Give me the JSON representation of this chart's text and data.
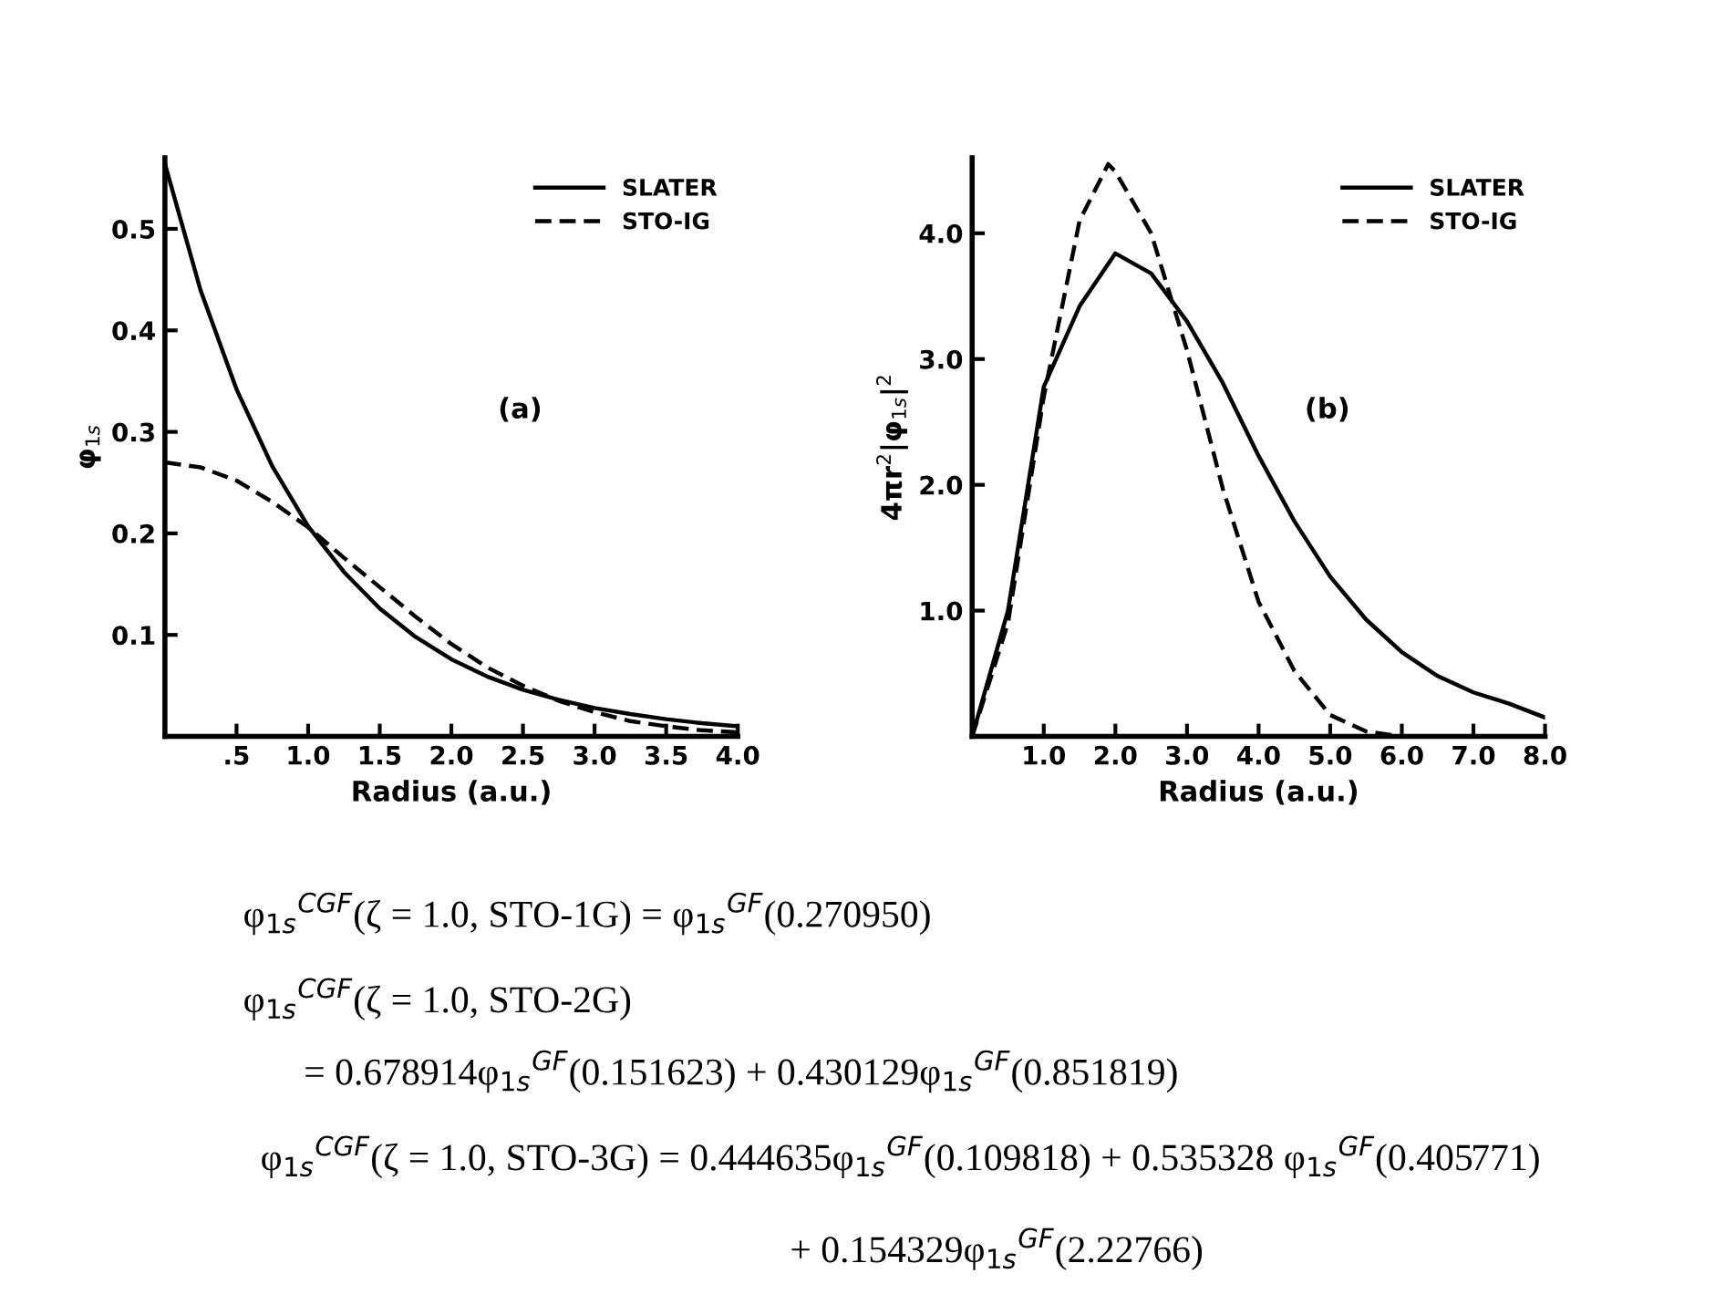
{
  "chart_data": [
    {
      "type": "line",
      "xlabel": "Radius (a.u.)",
      "ylabel": "φ$_{1s}$",
      "xlim": [
        0,
        4
      ],
      "ylim": [
        0,
        0.57
      ],
      "xticks": [
        {
          "value": 0.5,
          "label": ".5"
        },
        {
          "value": 1.0,
          "label": "1.0"
        },
        {
          "value": 1.5,
          "label": "1.5"
        },
        {
          "value": 2.0,
          "label": "2.0"
        },
        {
          "value": 2.5,
          "label": "2.5"
        },
        {
          "value": 3.0,
          "label": "3.0"
        },
        {
          "value": 3.5,
          "label": "3.5"
        },
        {
          "value": 4.0,
          "label": "4.0"
        }
      ],
      "yticks": [
        0.1,
        0.2,
        0.3,
        0.4,
        0.5
      ],
      "x": [
        0,
        0.25,
        0.5,
        0.75,
        1.0,
        1.25,
        1.5,
        1.75,
        2.0,
        2.25,
        2.5,
        2.75,
        3.0,
        3.25,
        3.5,
        3.75,
        4.0
      ],
      "series": [
        {
          "name": "SLATER",
          "color": "#000000",
          "line_style": "solid",
          "values": [
            0.564,
            0.439,
            0.342,
            0.266,
            0.207,
            0.162,
            0.126,
            0.098,
            0.076,
            0.059,
            0.046,
            0.036,
            0.028,
            0.022,
            0.017,
            0.013,
            0.01
          ]
        },
        {
          "name": "STO-IG",
          "color": "#000000",
          "line_style": "dashed",
          "values": [
            0.27,
            0.265,
            0.252,
            0.231,
            0.206,
            0.176,
            0.147,
            0.118,
            0.091,
            0.068,
            0.05,
            0.035,
            0.024,
            0.015,
            0.01,
            0.006,
            0.004
          ]
        }
      ],
      "legend": "top right",
      "grid": false,
      "marker": "none",
      "annotations": [
        "(a)",
        "φ$_{1s}$$^{CGF}$(ζ = 1.0, STO-1G) = φ$_{1s}$$^{GF}$(0.270950)",
        "φ$_{1s}$$^{CGF}$(ζ = 1.0, STO-2G)",
        "= 0.678914φ$_{1s}$$^{GF}$(0.151623) + 0.430129φ$_{1s}$$^{GF}$(0.851819)",
        "φ$_{1s}$$^{CGF}$(ζ = 1.0, STO-3G) = 0.444635φ$_{1s}$$^{GF}$(0.109818) + 0.535328 φ$_{1s}$$^{GF}$(0.405771)",
        "+ 0.154329φ$_{1s}$$^{GF}$(2.22766)"
      ]
    },
    {
      "type": "line",
      "xlabel": "Radius (a.u.)",
      "ylabel": "4πr$^{2}$|φ$_{1s}$|$^{2}$",
      "xlim": [
        0,
        8
      ],
      "ylim": [
        0,
        4.6
      ],
      "xticks": [
        {
          "value": 1,
          "label": "1.0"
        },
        {
          "value": 2,
          "label": "2.0"
        },
        {
          "value": 3,
          "label": "3.0"
        },
        {
          "value": 4,
          "label": "4.0"
        },
        {
          "value": 5,
          "label": "5.0"
        },
        {
          "value": 6,
          "label": "6.0"
        },
        {
          "value": 7,
          "label": "7.0"
        },
        {
          "value": 8,
          "label": "8.0"
        }
      ],
      "yticks": [
        {
          "value": 1,
          "label": "1.0"
        },
        {
          "value": 2,
          "label": "2.0"
        },
        {
          "value": 3,
          "label": "3.0"
        },
        {
          "value": 4,
          "label": "4.0"
        }
      ],
      "series": [
        {
          "name": "SLATER",
          "color": "#000000",
          "line_style": "solid",
          "x": [
            0,
            0.5,
            1.0,
            1.5,
            2.0,
            2.5,
            3.0,
            3.5,
            4.0,
            4.5,
            5.0,
            5.5,
            6.0,
            6.5,
            7.0,
            7.5,
            8.0
          ],
          "values": [
            0,
            1.0,
            2.78,
            3.42,
            3.84,
            3.68,
            3.3,
            2.81,
            2.23,
            1.71,
            1.27,
            0.93,
            0.67,
            0.48,
            0.35,
            0.26,
            0.15
          ]
        },
        {
          "name": "STO-IG",
          "color": "#000000",
          "line_style": "dashed",
          "x": [
            0,
            0.5,
            1.0,
            1.5,
            1.9,
            2.0,
            2.5,
            3.0,
            3.5,
            4.0,
            4.5,
            5.0,
            5.5,
            6.0,
            6.5
          ],
          "values": [
            0,
            0.9,
            2.7,
            4.1,
            4.55,
            4.49,
            4.0,
            3.07,
            1.97,
            1.07,
            0.52,
            0.17,
            0.04,
            0,
            0
          ]
        }
      ],
      "legend": "top right",
      "grid": false,
      "marker": "none",
      "annotations": [
        "(b)"
      ]
    }
  ]
}
